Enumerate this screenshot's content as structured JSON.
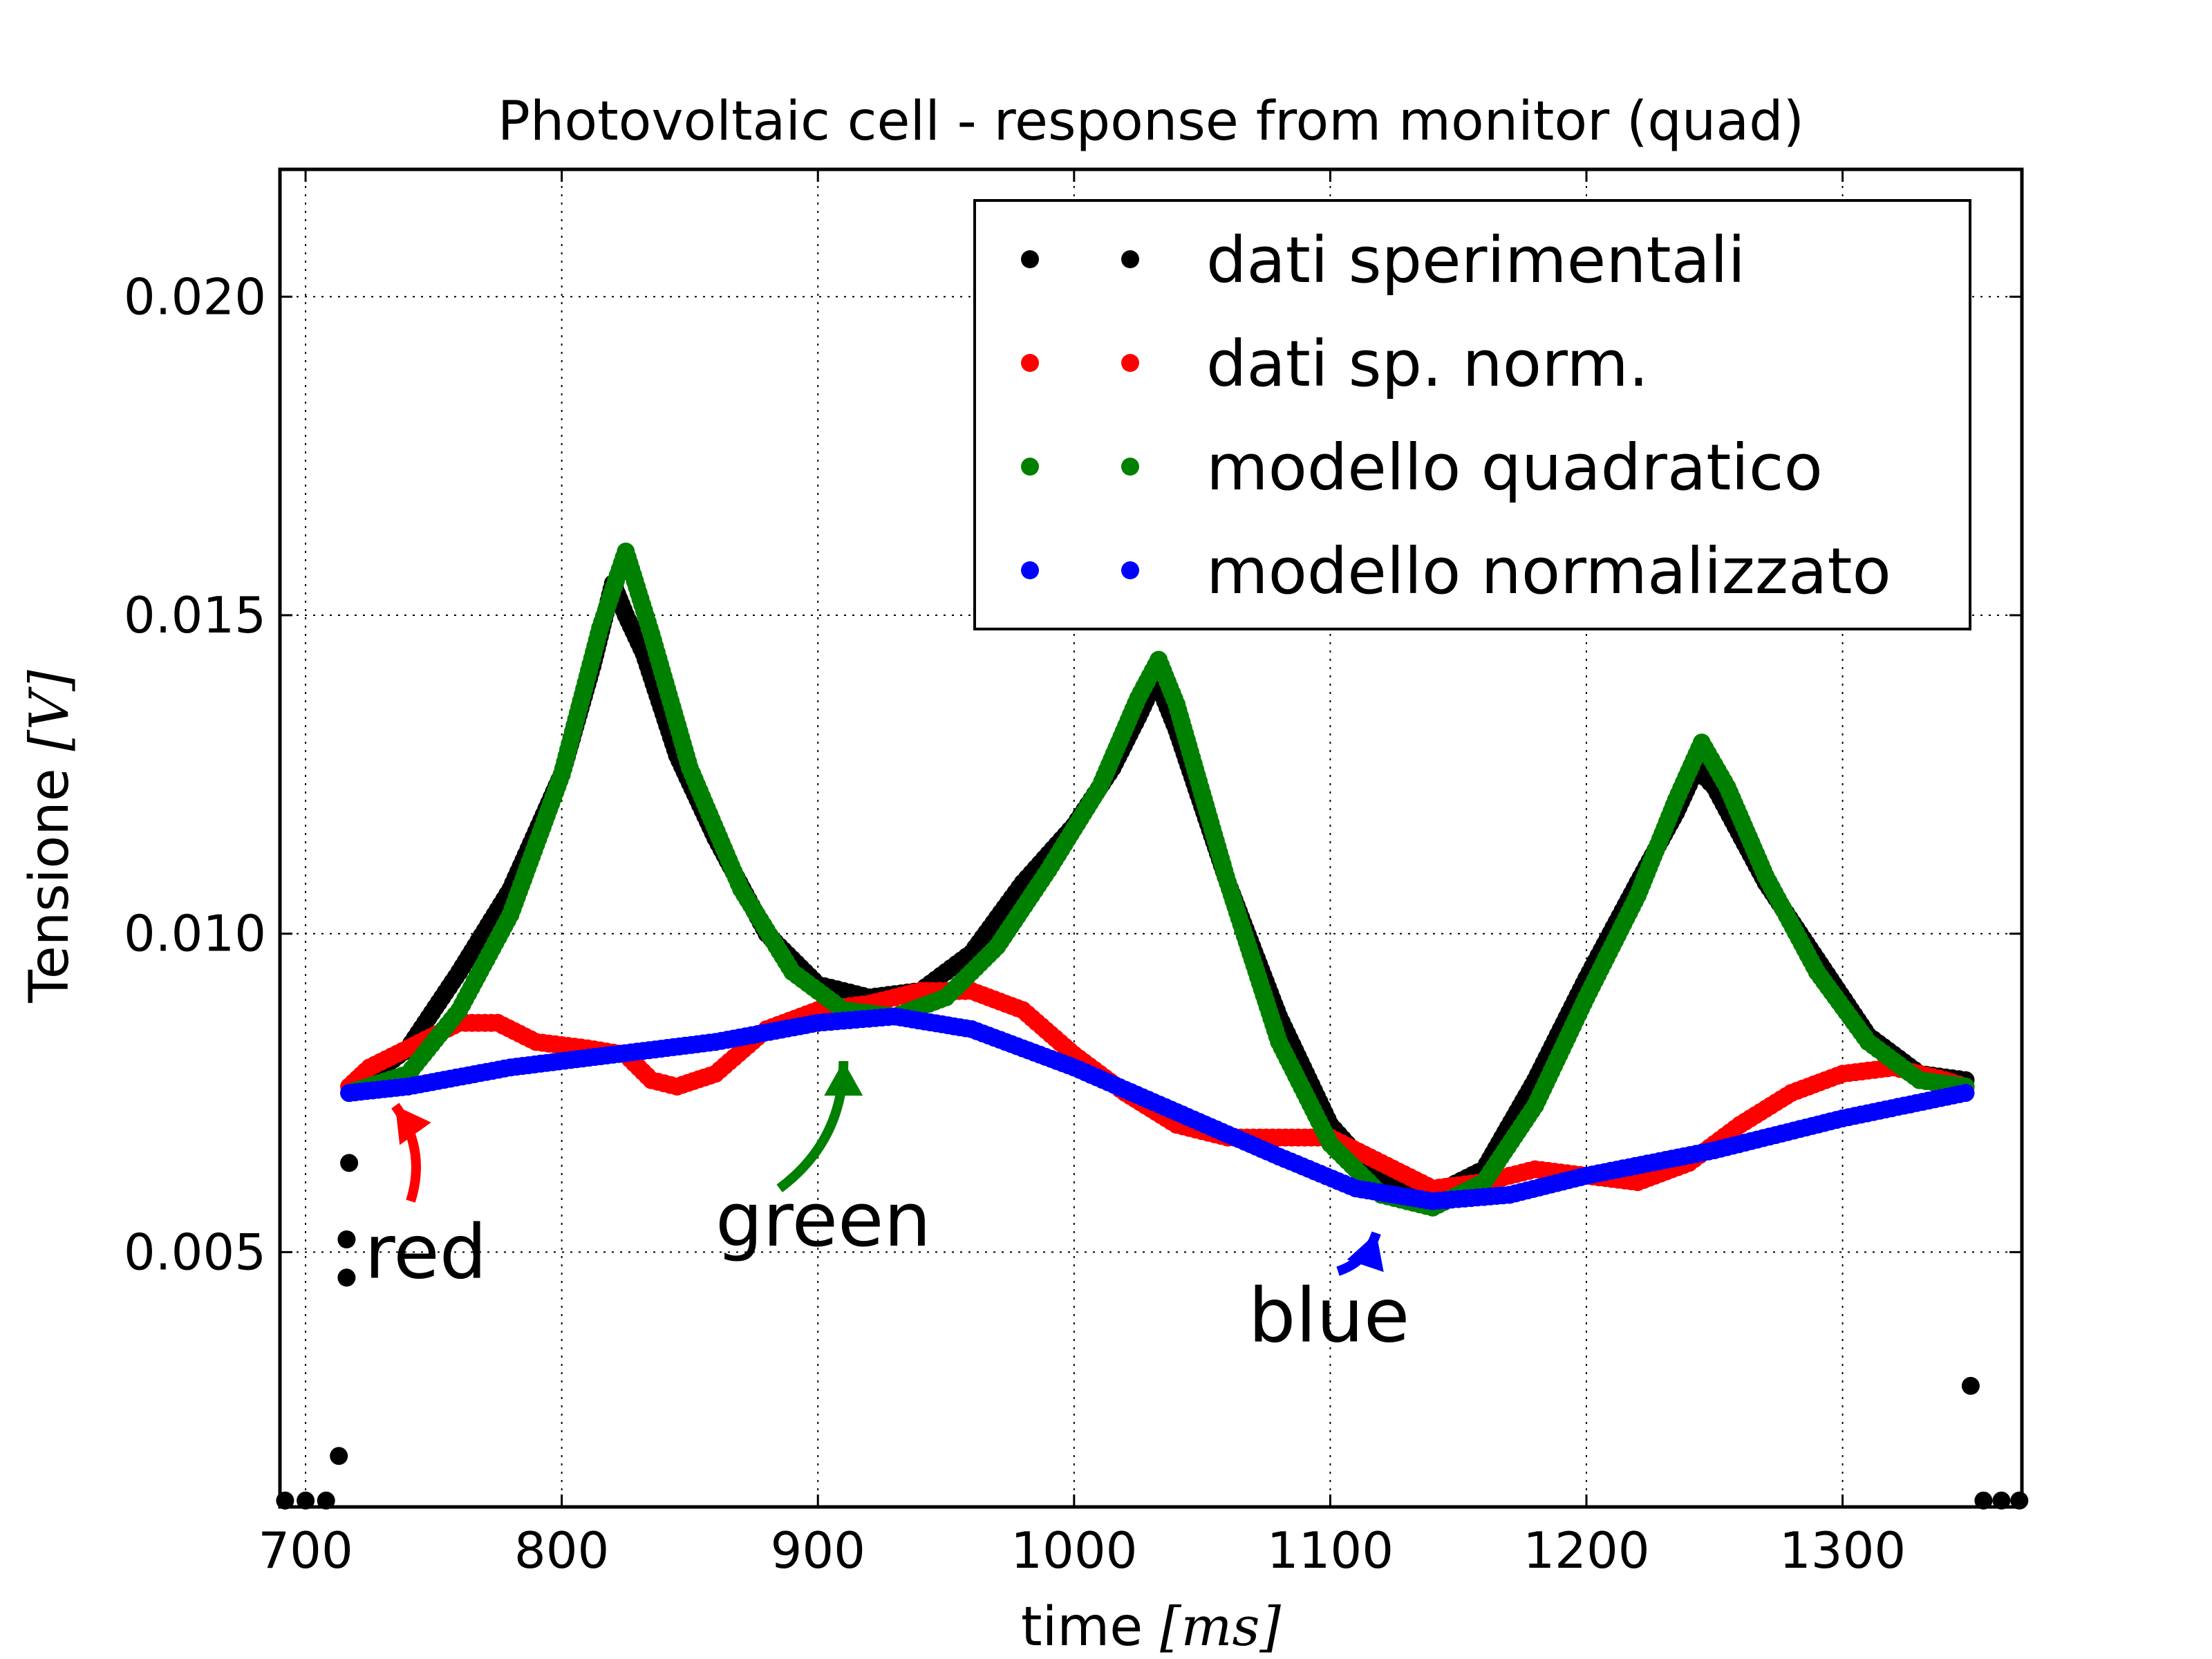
{
  "chart_data": {
    "type": "scatter",
    "title": "Photovoltaic cell - response from monitor (quad)",
    "xlabel_text": "time",
    "xlabel_unit": "[ms]",
    "ylabel_text": "Tensione",
    "ylabel_unit": "[V]",
    "xlim": [
      690,
      1370
    ],
    "ylim": [
      0.001,
      0.022
    ],
    "xticks": [
      700,
      800,
      900,
      1000,
      1100,
      1200,
      1300
    ],
    "yticks": [
      0.005,
      0.01,
      0.015,
      0.02
    ],
    "ytick_labels": [
      "0.005",
      "0.010",
      "0.015",
      "0.020"
    ],
    "grid": true,
    "legend_position": "top-right",
    "series": [
      {
        "name": "dati sperimentali",
        "color": "#000000",
        "keypoints": [
          [
            717,
            0.0075
          ],
          [
            740,
            0.0082
          ],
          [
            760,
            0.0094
          ],
          [
            780,
            0.0107
          ],
          [
            800,
            0.0125
          ],
          [
            812,
            0.0142
          ],
          [
            820,
            0.0155
          ],
          [
            825,
            0.015
          ],
          [
            832,
            0.0144
          ],
          [
            845,
            0.0128
          ],
          [
            860,
            0.0115
          ],
          [
            880,
            0.01
          ],
          [
            900,
            0.0092
          ],
          [
            920,
            0.009
          ],
          [
            940,
            0.0091
          ],
          [
            960,
            0.0097
          ],
          [
            980,
            0.0108
          ],
          [
            1000,
            0.0117
          ],
          [
            1015,
            0.0126
          ],
          [
            1025,
            0.0134
          ],
          [
            1032,
            0.014
          ],
          [
            1040,
            0.0132
          ],
          [
            1060,
            0.0108
          ],
          [
            1080,
            0.0087
          ],
          [
            1100,
            0.007
          ],
          [
            1120,
            0.0061
          ],
          [
            1140,
            0.0059
          ],
          [
            1160,
            0.0063
          ],
          [
            1180,
            0.0077
          ],
          [
            1200,
            0.0093
          ],
          [
            1220,
            0.0108
          ],
          [
            1235,
            0.0119
          ],
          [
            1243,
            0.0126
          ],
          [
            1250,
            0.0123
          ],
          [
            1270,
            0.0108
          ],
          [
            1290,
            0.0096
          ],
          [
            1310,
            0.0084
          ],
          [
            1330,
            0.0078
          ],
          [
            1348,
            0.0077
          ]
        ],
        "outliers": [
          [
            692,
            0.0011
          ],
          [
            700,
            0.0011
          ],
          [
            708,
            0.0011
          ],
          [
            713,
            0.0018
          ],
          [
            716,
            0.0046
          ],
          [
            716,
            0.0052
          ],
          [
            717,
            0.0064
          ],
          [
            1350,
            0.0029
          ],
          [
            1355,
            0.0011
          ],
          [
            1362,
            0.0011
          ],
          [
            1369,
            0.0011
          ]
        ]
      },
      {
        "name": "dati sp. norm.",
        "color": "#ff0000",
        "keypoints": [
          [
            717,
            0.0076
          ],
          [
            725,
            0.0079
          ],
          [
            740,
            0.0082
          ],
          [
            760,
            0.0086
          ],
          [
            775,
            0.0086
          ],
          [
            790,
            0.0083
          ],
          [
            810,
            0.0082
          ],
          [
            825,
            0.0081
          ],
          [
            835,
            0.0077
          ],
          [
            845,
            0.0076
          ],
          [
            860,
            0.0078
          ],
          [
            880,
            0.0085
          ],
          [
            900,
            0.0088
          ],
          [
            920,
            0.0089
          ],
          [
            940,
            0.0091
          ],
          [
            960,
            0.0091
          ],
          [
            980,
            0.0088
          ],
          [
            1000,
            0.0081
          ],
          [
            1020,
            0.0075
          ],
          [
            1040,
            0.007
          ],
          [
            1060,
            0.0068
          ],
          [
            1080,
            0.0068
          ],
          [
            1100,
            0.0068
          ],
          [
            1120,
            0.0064
          ],
          [
            1140,
            0.006
          ],
          [
            1160,
            0.0061
          ],
          [
            1180,
            0.0063
          ],
          [
            1200,
            0.0062
          ],
          [
            1220,
            0.0061
          ],
          [
            1240,
            0.0064
          ],
          [
            1260,
            0.007
          ],
          [
            1280,
            0.0075
          ],
          [
            1300,
            0.0078
          ],
          [
            1320,
            0.0079
          ],
          [
            1340,
            0.0077
          ],
          [
            1348,
            0.0076
          ]
        ]
      },
      {
        "name": "modello quadratico",
        "color": "#008000",
        "keypoints": [
          [
            717,
            0.0075
          ],
          [
            740,
            0.0078
          ],
          [
            760,
            0.0088
          ],
          [
            780,
            0.0103
          ],
          [
            800,
            0.0125
          ],
          [
            815,
            0.0148
          ],
          [
            825,
            0.016
          ],
          [
            835,
            0.0147
          ],
          [
            850,
            0.0126
          ],
          [
            870,
            0.0107
          ],
          [
            890,
            0.0094
          ],
          [
            910,
            0.0088
          ],
          [
            930,
            0.0087
          ],
          [
            950,
            0.009
          ],
          [
            970,
            0.0098
          ],
          [
            990,
            0.011
          ],
          [
            1010,
            0.0123
          ],
          [
            1025,
            0.0137
          ],
          [
            1033,
            0.0143
          ],
          [
            1040,
            0.0136
          ],
          [
            1060,
            0.0108
          ],
          [
            1080,
            0.0083
          ],
          [
            1100,
            0.0067
          ],
          [
            1120,
            0.0059
          ],
          [
            1140,
            0.0057
          ],
          [
            1160,
            0.0061
          ],
          [
            1180,
            0.0073
          ],
          [
            1200,
            0.009
          ],
          [
            1220,
            0.0106
          ],
          [
            1235,
            0.0121
          ],
          [
            1245,
            0.013
          ],
          [
            1255,
            0.0123
          ],
          [
            1270,
            0.0109
          ],
          [
            1290,
            0.0094
          ],
          [
            1310,
            0.0083
          ],
          [
            1330,
            0.0077
          ],
          [
            1348,
            0.0076
          ]
        ]
      },
      {
        "name": "modello normalizzato",
        "color": "#0000ff",
        "keypoints": [
          [
            717,
            0.0075
          ],
          [
            740,
            0.0076
          ],
          [
            780,
            0.0079
          ],
          [
            820,
            0.0081
          ],
          [
            860,
            0.0083
          ],
          [
            900,
            0.0086
          ],
          [
            930,
            0.0087
          ],
          [
            960,
            0.0085
          ],
          [
            1000,
            0.0079
          ],
          [
            1040,
            0.0072
          ],
          [
            1080,
            0.0065
          ],
          [
            1110,
            0.006
          ],
          [
            1140,
            0.0058
          ],
          [
            1170,
            0.0059
          ],
          [
            1200,
            0.0062
          ],
          [
            1250,
            0.0066
          ],
          [
            1300,
            0.0071
          ],
          [
            1348,
            0.0075
          ]
        ]
      }
    ],
    "annotations": [
      {
        "text": "red",
        "color": "#000000",
        "text_x": 723,
        "text_y": 0.0046,
        "arrow_color": "#ff0000",
        "arrow_from": [
          741,
          0.0058
        ],
        "arrow_to": [
          735,
          0.0073
        ]
      },
      {
        "text": "green",
        "color": "#000000",
        "text_x": 860,
        "text_y": 0.0051,
        "arrow_color": "#008000",
        "arrow_from": [
          885,
          0.006
        ],
        "arrow_to": [
          910,
          0.008
        ]
      },
      {
        "text": "blue",
        "color": "#000000",
        "text_x": 1068,
        "text_y": 0.0036,
        "arrow_color": "#0000ff",
        "arrow_from": [
          1103,
          0.0047
        ],
        "arrow_to": [
          1118,
          0.0053
        ]
      }
    ]
  }
}
